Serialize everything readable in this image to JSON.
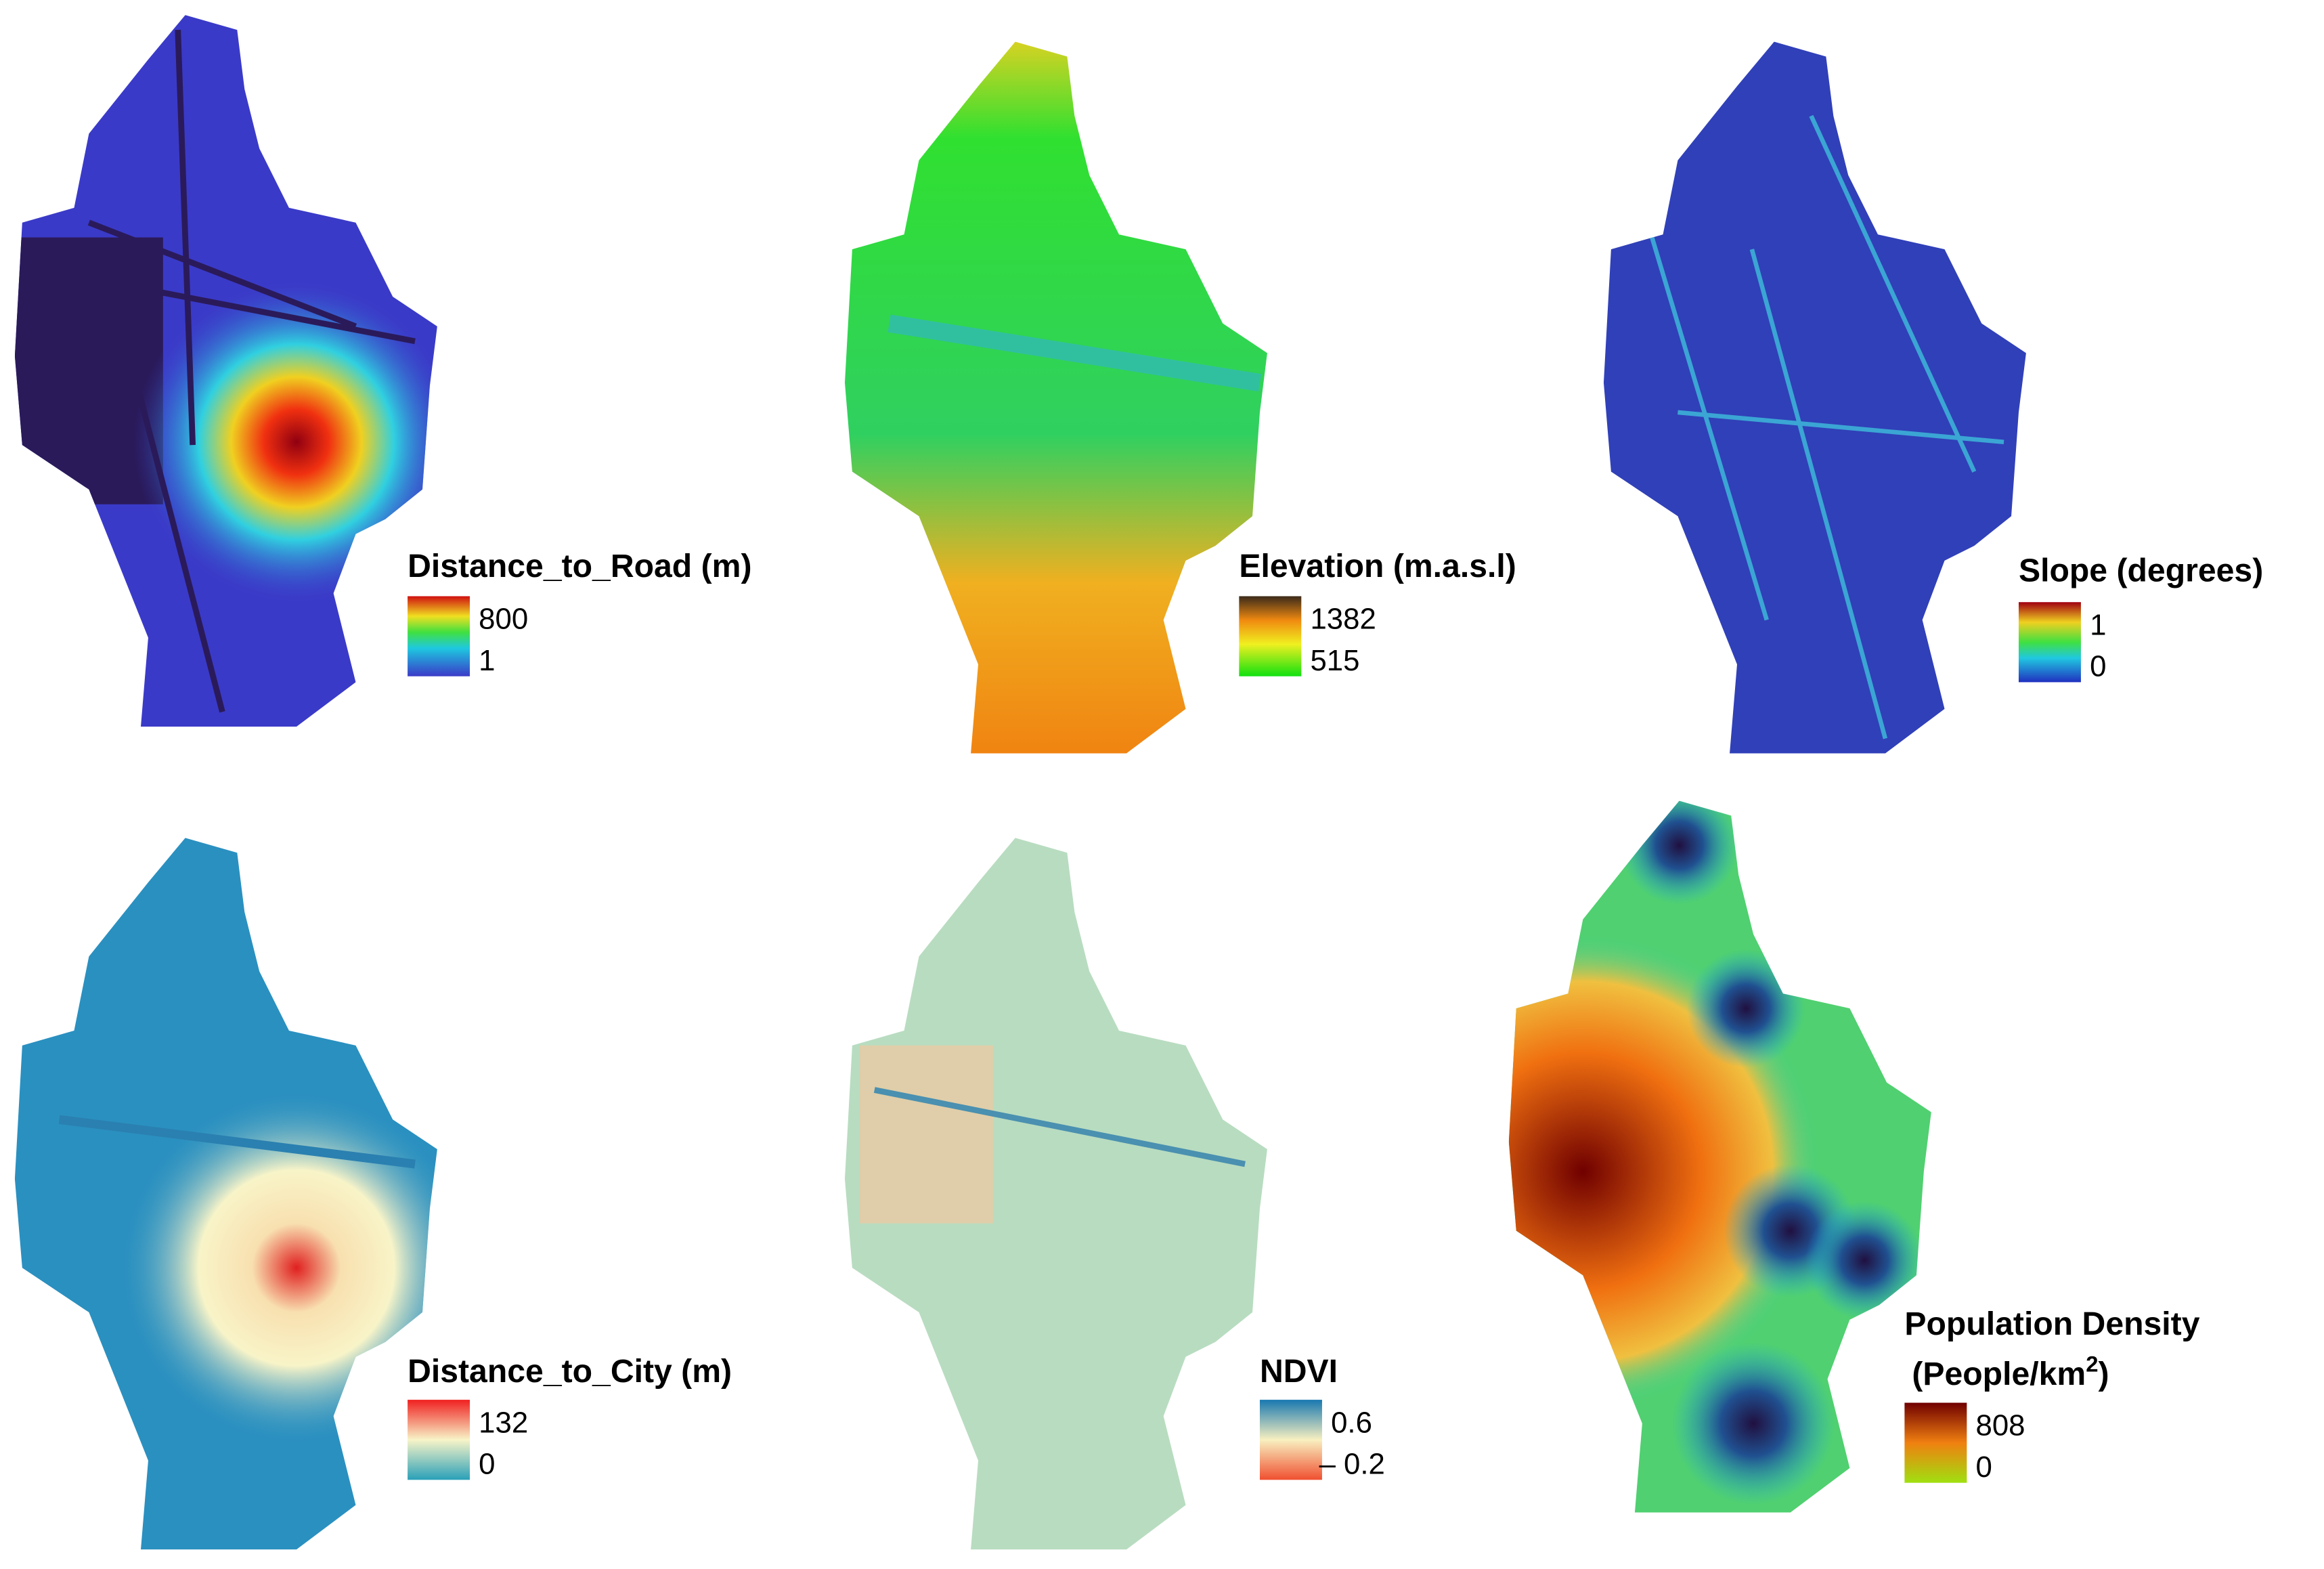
{
  "panels": [
    {
      "title": "Distance_to_Road (m)",
      "legend": {
        "max": 800,
        "min": 1
      }
    },
    {
      "title": "Elevation (m.a.s.l)",
      "legend": {
        "max": 1382,
        "min": 515
      }
    },
    {
      "title": "Slope (degrees)",
      "legend": {
        "max": 1,
        "min": 0
      }
    },
    {
      "title": "Distance_to_City (m)",
      "legend": {
        "max": 132,
        "min": 0
      }
    },
    {
      "title": "NDVI",
      "legend": {
        "max": 0.6,
        "min": {
          "value": -0.2,
          "label": "– 0.2"
        }
      }
    },
    {
      "title": "Population Density",
      "subtitle_prefix": "(People/km",
      "subtitle_exponent": "2",
      "subtitle_suffix": ")",
      "legend": {
        "max": 808,
        "min": 0
      }
    }
  ]
}
